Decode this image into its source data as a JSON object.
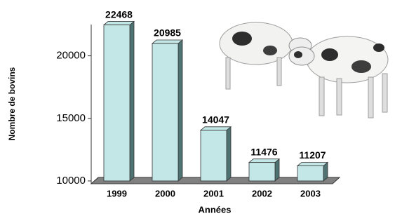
{
  "chart_data": {
    "type": "bar3d",
    "categories": [
      "1999",
      "2000",
      "2001",
      "2002",
      "2003"
    ],
    "values": [
      22468,
      20985,
      14047,
      11476,
      11207
    ],
    "color": "#c3e6e6",
    "side_color": "#4f7373",
    "x_label": "Années",
    "y_label": "Nombre de bovins",
    "ylim": [
      10000,
      22500
    ],
    "yticks": [
      10000,
      15000,
      20000
    ]
  }
}
